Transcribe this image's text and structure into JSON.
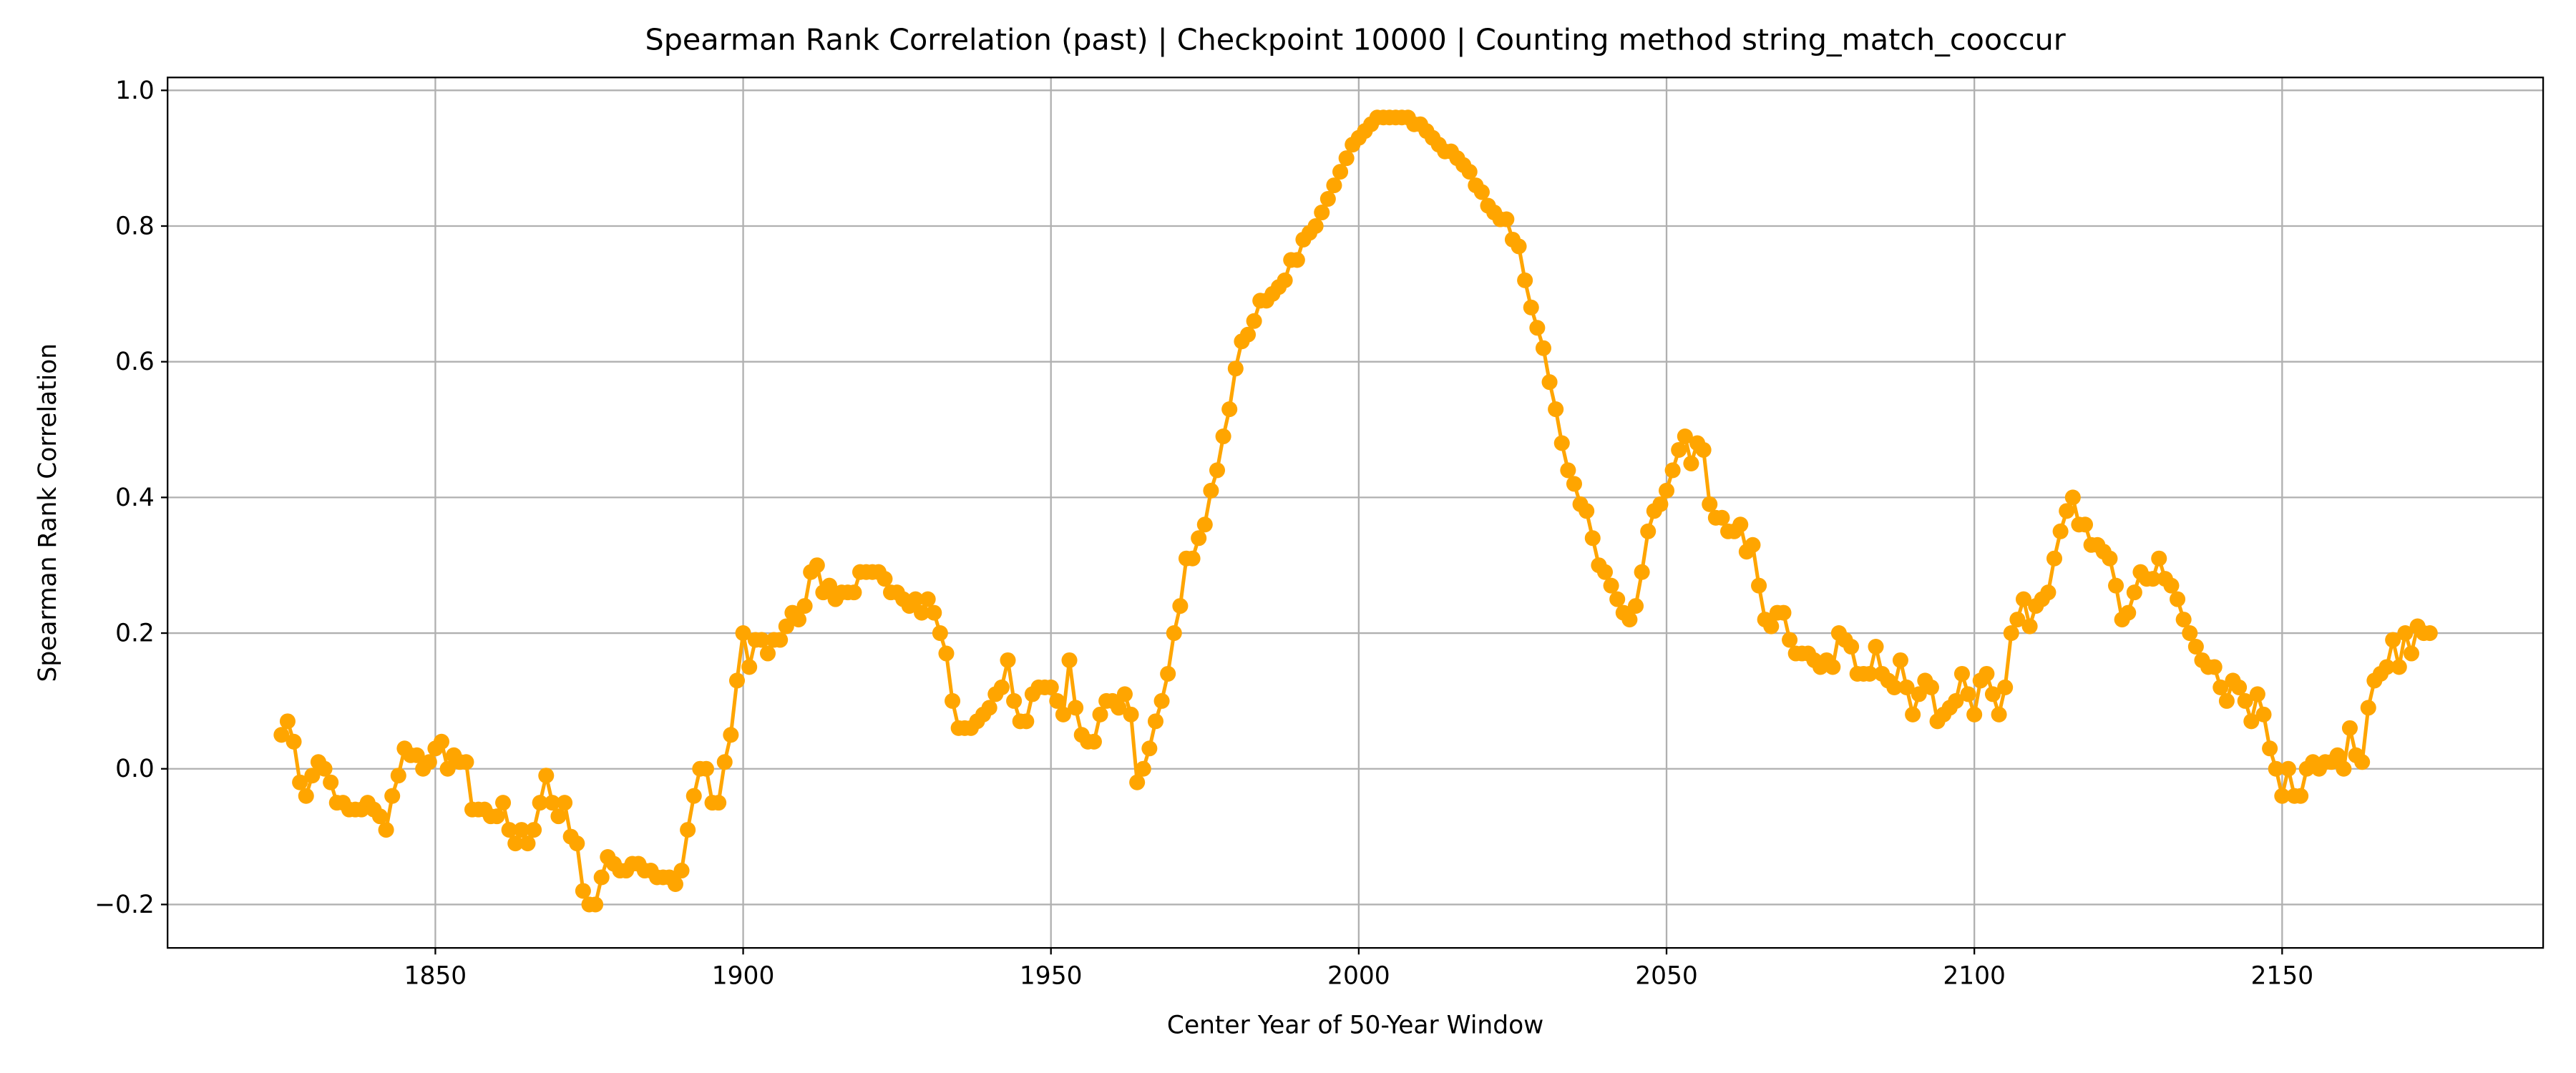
{
  "chart_data": {
    "type": "line",
    "title": "Spearman Rank Correlation (past) | Checkpoint 10000 | Counting method string_match_cooccur",
    "xlabel": "Center Year of 50-Year Window",
    "ylabel": "Spearman Rank Correlation",
    "x": [
      1825,
      1826,
      1827,
      1828,
      1829,
      1830,
      1831,
      1832,
      1833,
      1834,
      1835,
      1836,
      1837,
      1838,
      1839,
      1840,
      1841,
      1842,
      1843,
      1844,
      1845,
      1846,
      1847,
      1848,
      1849,
      1850,
      1851,
      1852,
      1853,
      1854,
      1855,
      1856,
      1857,
      1858,
      1859,
      1860,
      1861,
      1862,
      1863,
      1864,
      1865,
      1866,
      1867,
      1868,
      1869,
      1870,
      1871,
      1872,
      1873,
      1874,
      1875,
      1876,
      1877,
      1878,
      1879,
      1880,
      1881,
      1882,
      1883,
      1884,
      1885,
      1886,
      1887,
      1888,
      1889,
      1890,
      1891,
      1892,
      1893,
      1894,
      1895,
      1896,
      1897,
      1898,
      1899,
      1900,
      1901,
      1902,
      1903,
      1904,
      1905,
      1906,
      1907,
      1908,
      1909,
      1910,
      1911,
      1912,
      1913,
      1914,
      1915,
      1916,
      1917,
      1918,
      1919,
      1920,
      1921,
      1922,
      1923,
      1924,
      1925,
      1926,
      1927,
      1928,
      1929,
      1930,
      1931,
      1932,
      1933,
      1934,
      1935,
      1936,
      1937,
      1938,
      1939,
      1940,
      1941,
      1942,
      1943,
      1944,
      1945,
      1946,
      1947,
      1948,
      1949,
      1950,
      1951,
      1952,
      1953,
      1954,
      1955,
      1956,
      1957,
      1958,
      1959,
      1960,
      1961,
      1962,
      1963,
      1964,
      1965,
      1966,
      1967,
      1968,
      1969,
      1970,
      1971,
      1972,
      1973,
      1974,
      1975,
      1976,
      1977,
      1978,
      1979,
      1980,
      1981,
      1982,
      1983,
      1984,
      1985,
      1986,
      1987,
      1988,
      1989,
      1990,
      1991,
      1992,
      1993,
      1994,
      1995,
      1996,
      1997,
      1998,
      1999,
      2000,
      2001,
      2002,
      2003,
      2004,
      2005,
      2006,
      2007,
      2008,
      2009,
      2010,
      2011,
      2012,
      2013,
      2014,
      2015,
      2016,
      2017,
      2018,
      2019,
      2020,
      2021,
      2022,
      2023,
      2024,
      2025,
      2026,
      2027,
      2028,
      2029,
      2030,
      2031,
      2032,
      2033,
      2034,
      2035,
      2036,
      2037,
      2038,
      2039,
      2040,
      2041,
      2042,
      2043,
      2044,
      2045,
      2046,
      2047,
      2048,
      2049,
      2050,
      2051,
      2052,
      2053,
      2054,
      2055,
      2056,
      2057,
      2058,
      2059,
      2060,
      2061,
      2062,
      2063,
      2064,
      2065,
      2066,
      2067,
      2068,
      2069,
      2070,
      2071,
      2072,
      2073,
      2074,
      2075,
      2076,
      2077,
      2078,
      2079,
      2080,
      2081,
      2082,
      2083,
      2084,
      2085,
      2086,
      2087,
      2088,
      2089,
      2090,
      2091,
      2092,
      2093,
      2094,
      2095,
      2096,
      2097,
      2098,
      2099,
      2100,
      2101,
      2102,
      2103,
      2104,
      2105,
      2106,
      2107,
      2108,
      2109,
      2110,
      2111,
      2112,
      2113,
      2114,
      2115,
      2116,
      2117,
      2118,
      2119,
      2120,
      2121,
      2122,
      2123,
      2124,
      2125,
      2126,
      2127,
      2128,
      2129,
      2130,
      2131,
      2132,
      2133,
      2134,
      2135,
      2136,
      2137,
      2138,
      2139,
      2140,
      2141,
      2142,
      2143,
      2144,
      2145,
      2146,
      2147,
      2148,
      2149,
      2150,
      2151,
      2152,
      2153,
      2154,
      2155,
      2156,
      2157,
      2158,
      2159,
      2160,
      2161,
      2162,
      2163,
      2164,
      2165,
      2166,
      2167,
      2168,
      2169,
      2170,
      2171,
      2172,
      2173,
      2174
    ],
    "series": [
      {
        "color": "#ffa500",
        "values": [
          0.05,
          0.07,
          0.04,
          -0.02,
          -0.04,
          -0.01,
          0.01,
          0.0,
          -0.02,
          -0.05,
          -0.05,
          -0.06,
          -0.06,
          -0.06,
          -0.05,
          -0.06,
          -0.07,
          -0.09,
          -0.04,
          -0.01,
          0.03,
          0.02,
          0.02,
          0.0,
          0.01,
          0.03,
          0.04,
          0.0,
          0.02,
          0.01,
          0.01,
          -0.06,
          -0.06,
          -0.06,
          -0.07,
          -0.07,
          -0.05,
          -0.09,
          -0.11,
          -0.09,
          -0.11,
          -0.09,
          -0.05,
          -0.01,
          -0.05,
          -0.07,
          -0.05,
          -0.1,
          -0.11,
          -0.18,
          -0.2,
          -0.2,
          -0.16,
          -0.13,
          -0.14,
          -0.15,
          -0.15,
          -0.14,
          -0.14,
          -0.15,
          -0.15,
          -0.16,
          -0.16,
          -0.16,
          -0.17,
          -0.15,
          -0.09,
          -0.04,
          0.0,
          0.0,
          -0.05,
          -0.05,
          0.01,
          0.05,
          0.13,
          0.2,
          0.15,
          0.19,
          0.19,
          0.17,
          0.19,
          0.19,
          0.21,
          0.23,
          0.22,
          0.24,
          0.29,
          0.3,
          0.26,
          0.27,
          0.25,
          0.26,
          0.26,
          0.26,
          0.29,
          0.29,
          0.29,
          0.29,
          0.28,
          0.26,
          0.26,
          0.25,
          0.24,
          0.25,
          0.23,
          0.25,
          0.23,
          0.2,
          0.17,
          0.1,
          0.06,
          0.06,
          0.06,
          0.07,
          0.08,
          0.09,
          0.11,
          0.12,
          0.16,
          0.1,
          0.07,
          0.07,
          0.11,
          0.12,
          0.12,
          0.12,
          0.1,
          0.08,
          0.16,
          0.09,
          0.05,
          0.04,
          0.04,
          0.08,
          0.1,
          0.1,
          0.09,
          0.11,
          0.08,
          -0.02,
          0.0,
          0.03,
          0.07,
          0.1,
          0.14,
          0.2,
          0.24,
          0.31,
          0.31,
          0.34,
          0.36,
          0.41,
          0.44,
          0.49,
          0.53,
          0.59,
          0.63,
          0.64,
          0.66,
          0.69,
          0.69,
          0.7,
          0.71,
          0.72,
          0.75,
          0.75,
          0.78,
          0.79,
          0.8,
          0.82,
          0.84,
          0.86,
          0.88,
          0.9,
          0.92,
          0.93,
          0.94,
          0.95,
          0.96,
          0.96,
          0.96,
          0.96,
          0.96,
          0.96,
          0.95,
          0.95,
          0.94,
          0.93,
          0.92,
          0.91,
          0.91,
          0.9,
          0.89,
          0.88,
          0.86,
          0.85,
          0.83,
          0.82,
          0.81,
          0.81,
          0.78,
          0.77,
          0.72,
          0.68,
          0.65,
          0.62,
          0.57,
          0.53,
          0.48,
          0.44,
          0.42,
          0.39,
          0.38,
          0.34,
          0.3,
          0.29,
          0.27,
          0.25,
          0.23,
          0.22,
          0.24,
          0.29,
          0.35,
          0.38,
          0.39,
          0.41,
          0.44,
          0.47,
          0.49,
          0.45,
          0.48,
          0.47,
          0.39,
          0.37,
          0.37,
          0.35,
          0.35,
          0.36,
          0.32,
          0.33,
          0.27,
          0.22,
          0.21,
          0.23,
          0.23,
          0.19,
          0.17,
          0.17,
          0.17,
          0.16,
          0.15,
          0.16,
          0.15,
          0.2,
          0.19,
          0.18,
          0.14,
          0.14,
          0.14,
          0.18,
          0.14,
          0.13,
          0.12,
          0.16,
          0.12,
          0.08,
          0.11,
          0.13,
          0.12,
          0.07,
          0.08,
          0.09,
          0.1,
          0.14,
          0.11,
          0.08,
          0.13,
          0.14,
          0.11,
          0.08,
          0.12,
          0.2,
          0.22,
          0.25,
          0.21,
          0.24,
          0.25,
          0.26,
          0.31,
          0.35,
          0.38,
          0.4,
          0.36,
          0.36,
          0.33,
          0.33,
          0.32,
          0.31,
          0.27,
          0.22,
          0.23,
          0.26,
          0.29,
          0.28,
          0.28,
          0.31,
          0.28,
          0.27,
          0.25,
          0.22,
          0.2,
          0.18,
          0.16,
          0.15,
          0.15,
          0.12,
          0.1,
          0.13,
          0.12,
          0.1,
          0.07,
          0.11,
          0.08,
          0.03,
          0.0,
          -0.04,
          0.0,
          -0.04,
          -0.04,
          0.0,
          0.01,
          0.0,
          0.01,
          0.01,
          0.02,
          0.0,
          0.06,
          0.02,
          0.01,
          0.09,
          0.13,
          0.14,
          0.15,
          0.19,
          0.15,
          0.2,
          0.17,
          0.21,
          0.2,
          0.2
        ]
      }
    ],
    "xlim": [
      1806.5,
      2192.4
    ],
    "ylim": [
      -0.264,
      1.019
    ],
    "xticks": [
      1850,
      1900,
      1950,
      2000,
      2050,
      2100,
      2150
    ],
    "yticks": [
      {
        "value": -0.2,
        "label": "−0.2"
      },
      {
        "value": 0,
        "label": "0.0"
      },
      0.2,
      0.4,
      0.6,
      0.8,
      {
        "value": 1,
        "label": "1.0"
      }
    ],
    "grid": true
  }
}
